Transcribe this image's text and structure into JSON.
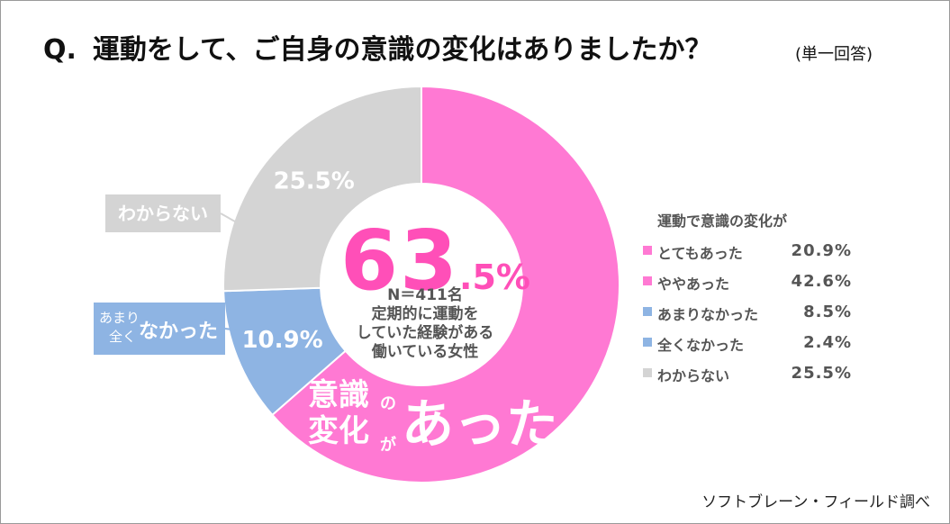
{
  "header": {
    "question_prefix": "Q.",
    "question": "運動をして、ご自身の意識の変化はありましたか？",
    "note": "(単一回答)"
  },
  "center": {
    "big_number": "63",
    "decimal": ".5%",
    "sample": "N＝411名",
    "desc_line1": "定期的に運動を",
    "desc_line2": "していた経験がある",
    "desc_line3": "働いている女性"
  },
  "slogan": {
    "line1": "意識",
    "no": "の",
    "line2": "変化",
    "ga": "が",
    "atta": "あった"
  },
  "callouts": {
    "unknown": "わからない",
    "not_small1": "あまり",
    "not_small2": "全く",
    "not_big": "なかった"
  },
  "legend": {
    "title": "運動で意識の変化が",
    "items": [
      {
        "label": "とてもあった",
        "value": "20.9%",
        "color": "#ff79d3"
      },
      {
        "label": "ややあった",
        "value": "42.6%",
        "color": "#ff79d3"
      },
      {
        "label": "あまりなかった",
        "value": "8.5%",
        "color": "#8eb4e3"
      },
      {
        "label": "全くなかった",
        "value": "2.4%",
        "color": "#8eb4e3"
      },
      {
        "label": "わからない",
        "value": "25.5%",
        "color": "#d4d4d4"
      }
    ]
  },
  "credit": "ソフトブレーン・フィールド調べ",
  "chart_data": {
    "type": "pie",
    "title": "運動をして、ご自身の意識の変化はありましたか？",
    "labels": [
      "意識の変化があった",
      "なかった",
      "わからない"
    ],
    "values": [
      63.5,
      10.9,
      25.5
    ],
    "value_labels": [
      "",
      "10.9%",
      "25.5%"
    ],
    "colors": [
      "#ff79d3",
      "#8eb4e3",
      "#d4d4d4"
    ],
    "donut": true,
    "legend_breakdown": [
      {
        "label": "とてもあった",
        "value": 20.9
      },
      {
        "label": "ややあった",
        "value": 42.6
      },
      {
        "label": "あまりなかった",
        "value": 8.5
      },
      {
        "label": "全くなかった",
        "value": 2.4
      },
      {
        "label": "わからない",
        "value": 25.5
      }
    ]
  }
}
